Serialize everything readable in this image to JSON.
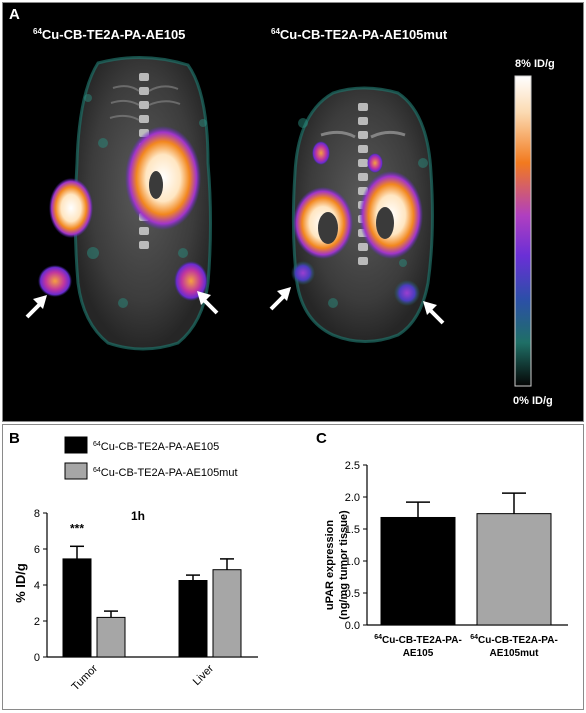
{
  "panel_a": {
    "letter": "A",
    "left_tracer": {
      "sup": "64",
      "rest": "Cu-CB-TE2A-PA-AE105"
    },
    "right_tracer": {
      "sup": "64",
      "rest": "Cu-CB-TE2A-PA-AE105mut"
    },
    "scale_max": "8% ID/g",
    "scale_min": "0% ID/g",
    "colors": {
      "background": "#000000",
      "scale_top": "#ffffff",
      "scale_mid_orange": "#f27a1e",
      "scale_mid_purple": "#8a2be2",
      "scale_low_teal": "#1f6f66"
    }
  },
  "chart_data": [
    {
      "panel": "B",
      "type": "bar",
      "title": "1h",
      "ylabel": "% ID/g",
      "ylim": [
        0,
        8
      ],
      "yticks": [
        0,
        2,
        4,
        6,
        8
      ],
      "categories": [
        "Tumor",
        "Liver"
      ],
      "series": [
        {
          "name_sup": "64",
          "name": "Cu-CB-TE2A-PA-AE105",
          "color": "#000000",
          "values": [
            5.45,
            4.25
          ],
          "errors": [
            0.7,
            0.3
          ]
        },
        {
          "name_sup": "64",
          "name": "Cu-CB-TE2A-PA-AE105mut",
          "color": "#a6a6a6",
          "values": [
            2.2,
            4.85
          ],
          "errors": [
            0.35,
            0.6
          ]
        }
      ],
      "annotations": [
        {
          "text": "***",
          "category": "Tumor"
        }
      ],
      "legend_position": "top-left"
    },
    {
      "panel": "C",
      "type": "bar",
      "ylabel_line1": "uPAR expression",
      "ylabel_line2": "(ng/mg tumor tissue)",
      "ylim": [
        0,
        2.5
      ],
      "yticks": [
        "0.0",
        "0.5",
        "1.0",
        "1.5",
        "2.0",
        "2.5"
      ],
      "categories": [
        {
          "line1_sup": "64",
          "line1": "Cu-CB-TE2A-PA-",
          "line2": "AE105"
        },
        {
          "line1_sup": "64",
          "line1": "Cu-CB-TE2A-PA-",
          "line2": "AE105mut"
        }
      ],
      "values": [
        1.68,
        1.74
      ],
      "errors": [
        0.24,
        0.32
      ],
      "colors": [
        "#000000",
        "#a6a6a6"
      ]
    }
  ]
}
